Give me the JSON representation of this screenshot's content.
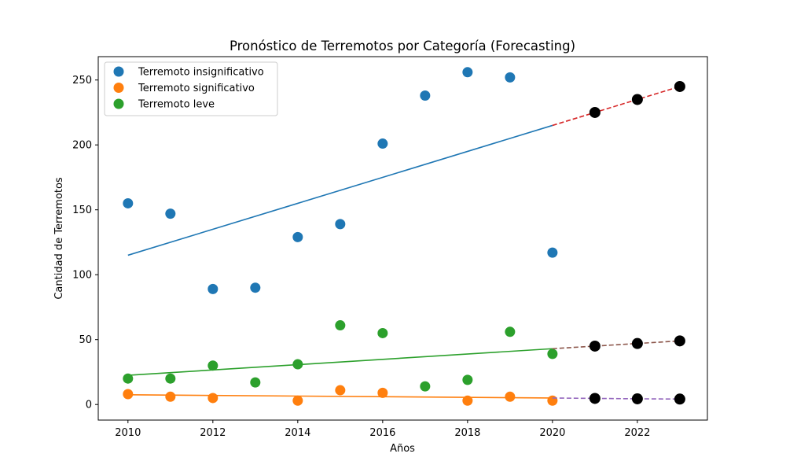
{
  "chart_data": {
    "type": "scatter",
    "title": "Pronóstico de Terremotos por Categoría (Forecasting)",
    "xlabel": "Años",
    "ylabel": "Cantidad de Terremotos",
    "xlim": [
      2009.3,
      2023.65
    ],
    "ylim": [
      -12,
      268
    ],
    "x_ticks": [
      2010,
      2012,
      2014,
      2016,
      2018,
      2020,
      2022
    ],
    "y_ticks": [
      0,
      50,
      100,
      150,
      200,
      250
    ],
    "grid": false,
    "legend_position": "top-left",
    "series": [
      {
        "name": "Terremoto insignificativo",
        "color": "#1f77b4",
        "x": [
          2010,
          2011,
          2012,
          2013,
          2014,
          2015,
          2016,
          2017,
          2018,
          2019,
          2020
        ],
        "y": [
          155,
          147,
          89,
          90,
          129,
          139,
          201,
          238,
          256,
          252,
          117
        ],
        "trend": {
          "x": [
            2010,
            2020
          ],
          "y": [
            115,
            215
          ]
        },
        "forecast": {
          "color": "#d62728",
          "x": [
            2020,
            2021,
            2022,
            2023
          ],
          "y": [
            215,
            225,
            235,
            245
          ]
        }
      },
      {
        "name": "Terremoto significativo",
        "color": "#ff7f0e",
        "x": [
          2010,
          2011,
          2012,
          2014,
          2015,
          2016,
          2018,
          2019,
          2020
        ],
        "y": [
          8,
          6,
          5,
          3,
          11,
          9,
          3,
          6,
          3
        ],
        "trend": {
          "x": [
            2010,
            2020
          ],
          "y": [
            7.5,
            5
          ]
        },
        "forecast": {
          "color": "#9467bd",
          "x": [
            2020,
            2021,
            2022,
            2023
          ],
          "y": [
            5,
            4.7,
            4.4,
            4.2
          ]
        }
      },
      {
        "name": "Terremoto leve",
        "color": "#2ca02c",
        "x": [
          2010,
          2011,
          2012,
          2013,
          2014,
          2015,
          2016,
          2017,
          2018,
          2019,
          2020
        ],
        "y": [
          20,
          20,
          30,
          17,
          31,
          61,
          55,
          14,
          19,
          56,
          39
        ],
        "trend": {
          "x": [
            2010,
            2020
          ],
          "y": [
            22.5,
            43
          ]
        },
        "forecast": {
          "color": "#8c564b",
          "x": [
            2020,
            2021,
            2022,
            2023
          ],
          "y": [
            43,
            45,
            47,
            49
          ]
        }
      }
    ],
    "forecast_marker_color": "#000000"
  }
}
